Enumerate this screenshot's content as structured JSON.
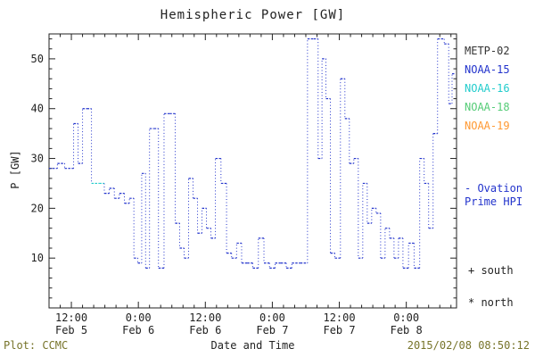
{
  "title": "Hemispheric Power [GW]",
  "ylabel": "P [GW]",
  "xlabel": "Date and Time",
  "footer": {
    "left": "Plot: CCMC",
    "right": "2015/02/08 08:50:12",
    "color": "#77742a"
  },
  "legend": {
    "satellites": [
      {
        "label": "METP-02",
        "color": "#333333"
      },
      {
        "label": "NOAA-15",
        "color": "#2233cc"
      },
      {
        "label": "NOAA-16",
        "color": "#22cccc"
      },
      {
        "label": "NOAA-18",
        "color": "#55cc77"
      },
      {
        "label": "NOAA-19",
        "color": "#ff9933"
      }
    ],
    "ovation": {
      "label_line1": "- Ovation",
      "label_line2": "Prime HPI",
      "color": "#2233cc"
    },
    "markers": [
      {
        "label": "+ south"
      },
      {
        "label": "* north"
      }
    ]
  },
  "chart_data": {
    "type": "line",
    "style": "step",
    "title": "Hemispheric Power [GW]",
    "xlabel": "Date and Time",
    "ylabel": "P [GW]",
    "ylim": [
      0,
      55
    ],
    "xlim_hours": [
      8,
      81
    ],
    "grid": false,
    "legend_position": "right",
    "axis_color": "#222222",
    "line_color": "#2233cc",
    "y_ticks": [
      10,
      20,
      30,
      40,
      50
    ],
    "x_ticks": [
      {
        "hour": 12,
        "time": "12:00",
        "date": "Feb 5"
      },
      {
        "hour": 24,
        "time": "0:00",
        "date": "Feb 6"
      },
      {
        "hour": 36,
        "time": "12:00",
        "date": "Feb 6"
      },
      {
        "hour": 48,
        "time": "0:00",
        "date": "Feb 7"
      },
      {
        "hour": 60,
        "time": "12:00",
        "date": "Feb 7"
      },
      {
        "hour": 72,
        "time": "0:00",
        "date": "Feb 8"
      }
    ],
    "points_note": "hours since Feb 5 00:00 UT, hemispheric power GW; optional 3rd item = segment color override",
    "points": [
      [
        8.0,
        28
      ],
      [
        9.5,
        29
      ],
      [
        10.8,
        28
      ],
      [
        12.4,
        37
      ],
      [
        13.2,
        29
      ],
      [
        14.0,
        40
      ],
      [
        14.8,
        40
      ],
      [
        15.6,
        25,
        "#22cccc"
      ],
      [
        17.0,
        25,
        "#22cccc"
      ],
      [
        17.9,
        23
      ],
      [
        18.8,
        24
      ],
      [
        19.7,
        22
      ],
      [
        20.6,
        23
      ],
      [
        21.5,
        21
      ],
      [
        22.4,
        22
      ],
      [
        23.2,
        10
      ],
      [
        23.9,
        9
      ],
      [
        24.6,
        27
      ],
      [
        25.3,
        8
      ],
      [
        26.0,
        36
      ],
      [
        26.8,
        36
      ],
      [
        27.6,
        8
      ],
      [
        28.6,
        39
      ],
      [
        29.6,
        39
      ],
      [
        30.6,
        17
      ],
      [
        31.4,
        12
      ],
      [
        32.2,
        10
      ],
      [
        33.0,
        26
      ],
      [
        33.8,
        22
      ],
      [
        34.6,
        15
      ],
      [
        35.4,
        20
      ],
      [
        36.2,
        16
      ],
      [
        37.0,
        14
      ],
      [
        37.8,
        30
      ],
      [
        38.8,
        25
      ],
      [
        39.8,
        11
      ],
      [
        40.7,
        10
      ],
      [
        41.6,
        13
      ],
      [
        42.5,
        9
      ],
      [
        43.5,
        9
      ],
      [
        44.5,
        8
      ],
      [
        45.5,
        14
      ],
      [
        46.5,
        9
      ],
      [
        47.5,
        8
      ],
      [
        48.5,
        9
      ],
      [
        49.5,
        9
      ],
      [
        50.5,
        8
      ],
      [
        51.5,
        9
      ],
      [
        53.0,
        9
      ],
      [
        54.3,
        54
      ],
      [
        55.4,
        54
      ],
      [
        56.2,
        30
      ],
      [
        56.9,
        50
      ],
      [
        57.6,
        42
      ],
      [
        58.4,
        11
      ],
      [
        59.2,
        10
      ],
      [
        60.2,
        46
      ],
      [
        61.0,
        38
      ],
      [
        61.8,
        29
      ],
      [
        62.6,
        30
      ],
      [
        63.4,
        10
      ],
      [
        64.2,
        25
      ],
      [
        65.0,
        17
      ],
      [
        65.8,
        20
      ],
      [
        66.6,
        19
      ],
      [
        67.4,
        10
      ],
      [
        68.2,
        16
      ],
      [
        69.0,
        14
      ],
      [
        69.8,
        10
      ],
      [
        70.6,
        14
      ],
      [
        71.4,
        8
      ],
      [
        72.4,
        13
      ],
      [
        73.4,
        8
      ],
      [
        74.4,
        30
      ],
      [
        75.2,
        25
      ],
      [
        76.0,
        16
      ],
      [
        76.8,
        35
      ],
      [
        77.6,
        54
      ],
      [
        78.8,
        53
      ],
      [
        79.6,
        41
      ],
      [
        80.2,
        47
      ],
      [
        80.8,
        47
      ]
    ]
  }
}
